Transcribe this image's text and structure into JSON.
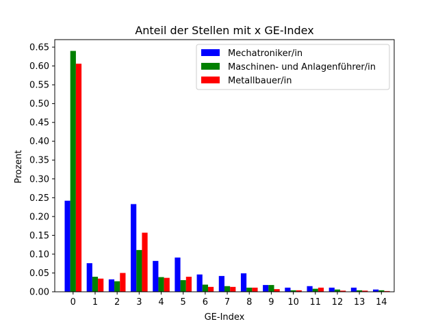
{
  "chart_data": {
    "type": "bar",
    "title": "Anteil der Stellen mit x GE-Index",
    "xlabel": "GE-Index",
    "ylabel": "Prozent",
    "categories": [
      "0",
      "1",
      "2",
      "3",
      "4",
      "5",
      "6",
      "7",
      "8",
      "9",
      "10",
      "11",
      "12",
      "13",
      "14"
    ],
    "ylim": [
      0,
      0.65
    ],
    "yticks": [
      "0.00",
      "0.05",
      "0.10",
      "0.15",
      "0.20",
      "0.25",
      "0.30",
      "0.35",
      "0.40",
      "0.45",
      "0.50",
      "0.55",
      "0.60",
      "0.65"
    ],
    "grid": false,
    "legend_position": "top-right",
    "series": [
      {
        "name": "Mechatroniker/in",
        "color": "#0000ff",
        "values": [
          0.242,
          0.076,
          0.033,
          0.233,
          0.082,
          0.091,
          0.046,
          0.042,
          0.049,
          0.018,
          0.011,
          0.015,
          0.011,
          0.011,
          0.006
        ]
      },
      {
        "name": "Maschinen- und Anlagenführer/in",
        "color": "#008000",
        "values": [
          0.64,
          0.04,
          0.028,
          0.111,
          0.039,
          0.031,
          0.019,
          0.015,
          0.011,
          0.018,
          0.004,
          0.008,
          0.006,
          0.004,
          0.004
        ]
      },
      {
        "name": "Metallbauer/in",
        "color": "#ff0000",
        "values": [
          0.606,
          0.035,
          0.05,
          0.157,
          0.037,
          0.04,
          0.013,
          0.013,
          0.011,
          0.007,
          0.004,
          0.011,
          0.003,
          0.003,
          0.002
        ]
      }
    ]
  }
}
